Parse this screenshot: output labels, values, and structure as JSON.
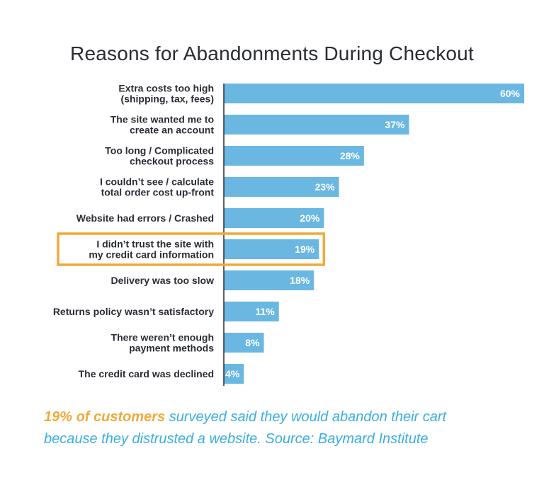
{
  "chart_data": {
    "type": "bar",
    "orientation": "horizontal",
    "title": "Reasons for Abandonments During Checkout",
    "categories": [
      [
        "Extra costs too high",
        "(shipping, tax, fees)"
      ],
      [
        "The site wanted me to",
        "create an account"
      ],
      [
        "Too long / Complicated",
        "checkout process"
      ],
      [
        "I couldn’t see / calculate",
        "total order cost up-front"
      ],
      [
        "Website had errors / Crashed"
      ],
      [
        "I didn’t trust the site with",
        "my credit card information"
      ],
      [
        "Delivery was too slow"
      ],
      [
        "Returns policy wasn’t satisfactory"
      ],
      [
        "There weren’t enough",
        "payment methods"
      ],
      [
        "The credit card was declined"
      ]
    ],
    "values": [
      60,
      37,
      28,
      23,
      20,
      19,
      18,
      11,
      8,
      4
    ],
    "data_labels": [
      "60%",
      "37%",
      "28%",
      "23%",
      "20%",
      "19%",
      "18%",
      "11%",
      "8%",
      "4%"
    ],
    "unit": "%",
    "xlim": [
      0,
      60
    ],
    "highlight_index": 5,
    "bar_color": "#6ab7e2",
    "highlight_color": "#f2a93a",
    "grid": false,
    "legend": "none"
  },
  "caption": {
    "highlight": "19% of customers",
    "rest_line1": " surveyed said they would abandon their cart",
    "line2": "because they distrusted a website. Source: Baymard Institute"
  }
}
